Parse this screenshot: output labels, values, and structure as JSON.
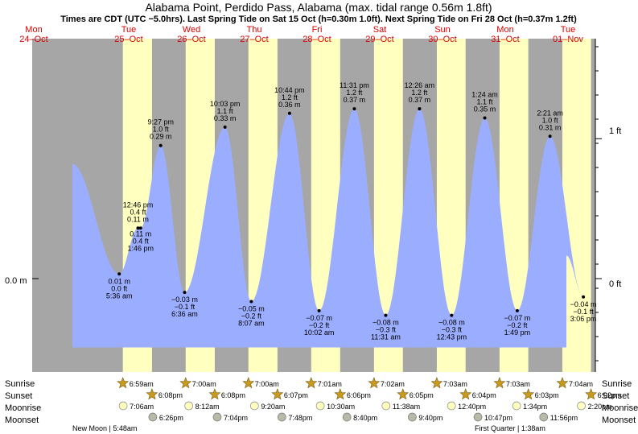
{
  "header": {
    "title": "Alabama Point, Perdido Pass, Alabama (max. tidal range 0.56m 1.8ft)",
    "subtitle": "Times are CDT (UTC −5.0hrs). Last Spring Tide on Sat 15 Oct (h=0.30m 1.0ft). Next Spring Tide on Fri 28 Oct (h=0.37m 1.2ft)"
  },
  "days": [
    {
      "dow": "Mon",
      "date": "24–Oct"
    },
    {
      "dow": "Tue",
      "date": "25–Oct"
    },
    {
      "dow": "Wed",
      "date": "26–Oct"
    },
    {
      "dow": "Thu",
      "date": "27–Oct"
    },
    {
      "dow": "Fri",
      "date": "28–Oct"
    },
    {
      "dow": "Sat",
      "date": "29–Oct"
    },
    {
      "dow": "Sun",
      "date": "30–Oct"
    },
    {
      "dow": "Mon",
      "date": "31–Oct"
    },
    {
      "dow": "Tue",
      "date": "01–Nov"
    }
  ],
  "axes": {
    "left_label": "0.0 m",
    "right_labels": [
      "1 ft",
      "0 ft"
    ]
  },
  "chart_data": {
    "type": "area",
    "ylabel_left": "m",
    "ylabel_right": "ft",
    "colors": {
      "water": "#9badff",
      "night": "#a6a6a6",
      "day": "#ffffc0",
      "day_label": "#e00000",
      "sun_star": "#c89a1e",
      "moon_circle": "#ffffc0",
      "moonset_circle": "#b9b9a8"
    },
    "tides": [
      {
        "time": "5:36 am",
        "m": "0.01 m",
        "ft": "0.0 ft",
        "type": "low",
        "h": 0.01
      },
      {
        "time": "12:46 pm",
        "m": "0.11 m",
        "ft": "0.4 ft",
        "type": "high",
        "h": 0.11
      },
      {
        "time": "1:46 pm",
        "m": "0.11 m",
        "ft": "0.4 ft",
        "type": "low",
        "h": 0.11
      },
      {
        "time": "9:27 pm",
        "m": "0.29 m",
        "ft": "1.0 ft",
        "type": "high",
        "h": 0.29
      },
      {
        "time": "6:36 am",
        "m": "−0.03 m",
        "ft": "−0.1 ft",
        "type": "low",
        "h": -0.03
      },
      {
        "time": "10:03 pm",
        "m": "0.33 m",
        "ft": "1.1 ft",
        "type": "high",
        "h": 0.33
      },
      {
        "time": "8:07 am",
        "m": "−0.05 m",
        "ft": "−0.2 ft",
        "type": "low",
        "h": -0.05
      },
      {
        "time": "10:44 pm",
        "m": "0.36 m",
        "ft": "1.2 ft",
        "type": "high",
        "h": 0.36
      },
      {
        "time": "10:02 am",
        "m": "−0.07 m",
        "ft": "−0.2 ft",
        "type": "low",
        "h": -0.07
      },
      {
        "time": "11:31 pm",
        "m": "0.37 m",
        "ft": "1.2 ft",
        "type": "high",
        "h": 0.37
      },
      {
        "time": "11:31 am",
        "m": "−0.08 m",
        "ft": "−0.3 ft",
        "type": "low",
        "h": -0.08
      },
      {
        "time": "12:26 am",
        "m": "0.37 m",
        "ft": "1.2 ft",
        "type": "high",
        "h": 0.37
      },
      {
        "time": "12:43 pm",
        "m": "−0.08 m",
        "ft": "−0.3 ft",
        "type": "low",
        "h": -0.08
      },
      {
        "time": "1:24 am",
        "m": "0.35 m",
        "ft": "1.1 ft",
        "type": "high",
        "h": 0.35
      },
      {
        "time": "1:49 pm",
        "m": "−0.07 m",
        "ft": "−0.2 ft",
        "type": "low",
        "h": -0.07
      },
      {
        "time": "2:21 am",
        "m": "0.31 m",
        "ft": "1.0 ft",
        "type": "high",
        "h": 0.31
      },
      {
        "time": "3:06 pm",
        "m": "−0.04 m",
        "ft": "−0.1 ft",
        "type": "low",
        "h": -0.04
      }
    ],
    "sunrise": [
      "6:59am",
      "7:00am",
      "7:00am",
      "7:01am",
      "7:02am",
      "7:03am",
      "7:03am",
      "7:04am"
    ],
    "sunset": [
      "6:08pm",
      "6:08pm",
      "6:07pm",
      "6:06pm",
      "6:05pm",
      "6:04pm",
      "6:03pm",
      "6:02pm"
    ],
    "moonrise": [
      "7:06am",
      "8:12am",
      "9:20am",
      "10:30am",
      "11:38am",
      "12:40pm",
      "1:34pm",
      "2:20pm"
    ],
    "moonset": [
      "6:26pm",
      "7:04pm",
      "7:48pm",
      "8:40pm",
      "9:40pm",
      "10:47pm",
      "11:56pm"
    ]
  },
  "footer": {
    "row_labels": {
      "sunrise": "Sunrise",
      "sunset": "Sunset",
      "moonrise": "Moonrise",
      "moonset": "Moonset"
    },
    "new_moon": "New Moon | 5:48am",
    "first_quarter": "First Quarter | 1:38am"
  }
}
